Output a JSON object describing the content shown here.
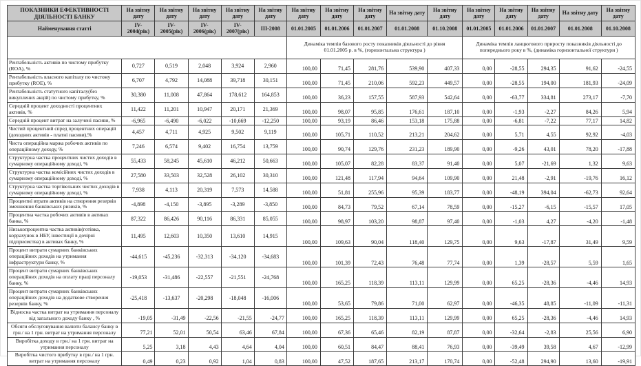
{
  "table": {
    "title": "ПОКАЗНИКИ ЕФЕКТИВНОСТІ ДІЯЛЬНОСТІ  БАНКУ",
    "subtitle": "Найменування статті",
    "report_date_header": "На звітну дату",
    "period_columns": [
      "IV-2004(рік)",
      "IV-2005(рік)",
      "IV-2006(рік)",
      "IV-2007(рік)",
      "III-2008"
    ],
    "base_dates": [
      "01.01.2005",
      "01.01.2006",
      "01.01.2007",
      "01.01.2008",
      "01.10.2008"
    ],
    "chain_dates": [
      "01.01.2005",
      "01.01.2006",
      "01.01.2007",
      "01.01.2008",
      "01.10.2008"
    ],
    "base_description": "Динаміка темпів базового росту показників діяльності до рівня 01.01.2005 р. в %, (горизонтальна структура )",
    "chain_description": "Динаміка темпів ланцюгового приросту показників діяльності до попереднього року в %, (динаміка горизонтальної структури )",
    "header_bg": "#c8c8c8",
    "border_color": "#3a3a3a",
    "rows": [
      {
        "name": "Рентабельність активів по чистому прибутку (ROA), %",
        "tail": false,
        "values": [
          "0,727",
          "0,519",
          "2,048",
          "3,924",
          "2,960"
        ],
        "base": [
          "100,00",
          "71,45",
          "281,76",
          "539,90",
          "407,33"
        ],
        "chain": [
          "0,00",
          "-28,55",
          "294,35",
          "91,62",
          "-24,55"
        ]
      },
      {
        "name": "Рентабельність власного капіталу по чистому прибутку (ROE), %",
        "tail": false,
        "values": [
          "6,707",
          "4,792",
          "14,088",
          "39,718",
          "30,151"
        ],
        "base": [
          "100,00",
          "71,45",
          "210,06",
          "592,23",
          "449,57"
        ],
        "chain": [
          "0,00",
          "-28,55",
          "194,00",
          "181,93",
          "-24,09"
        ]
      },
      {
        "name": "Рентабельність статутного капіталу(без викуплених акцій) по чистому прибутку, %",
        "tail": false,
        "values": [
          "30,380",
          "11,008",
          "47,864",
          "178,612",
          "164,853"
        ],
        "base": [
          "100,00",
          "36,23",
          "157,55",
          "587,93",
          "542,64"
        ],
        "chain": [
          "0,00",
          "-63,77",
          "334,81",
          "273,17",
          "-7,70"
        ]
      },
      {
        "name": "Середній процент доходності процентних активів, %",
        "tail": false,
        "values": [
          "11,422",
          "11,201",
          "10,947",
          "20,171",
          "21,369"
        ],
        "base": [
          "100,00",
          "98,07",
          "95,85",
          "176,61",
          "187,10"
        ],
        "chain": [
          "0,00",
          "-1,93",
          "-2,27",
          "84,26",
          "5,94"
        ]
      },
      {
        "name": "Середній процент витрат на залучені пасиви, %",
        "tail": false,
        "values": [
          "-6,965",
          "-6,490",
          "-6,022",
          "-10,669",
          "-12,250"
        ],
        "base": [
          "100,00",
          "93,19",
          "86,46",
          "153,18",
          "175,88"
        ],
        "chain": [
          "0,00",
          "-6,81",
          "-7,22",
          "77,17",
          "14,82"
        ]
      },
      {
        "name": "Чистий процентний спред процентних операцій (доходних активів - платні пасиви),%",
        "tail": false,
        "values": [
          "4,457",
          "4,711",
          "4,925",
          "9,502",
          "9,119"
        ],
        "base": [
          "100,00",
          "105,71",
          "110,52",
          "213,21",
          "204,62"
        ],
        "chain": [
          "0,00",
          "5,71",
          "4,55",
          "92,92",
          "-4,03"
        ]
      },
      {
        "name": "Чиста операційна маржа робочих активів по операційному доходу, %",
        "tail": false,
        "values": [
          "7,246",
          "6,574",
          "9,402",
          "16,754",
          "13,759"
        ],
        "base": [
          "100,00",
          "90,74",
          "129,76",
          "231,23",
          "189,90"
        ],
        "chain": [
          "0,00",
          "-9,26",
          "43,01",
          "78,20",
          "-17,88"
        ]
      },
      {
        "name": "Структурна частка процентних чистих доходів в сумарному операційному доході, %",
        "tail": false,
        "values": [
          "55,433",
          "58,245",
          "45,610",
          "46,212",
          "50,663"
        ],
        "base": [
          "100,00",
          "105,07",
          "82,28",
          "83,37",
          "91,40"
        ],
        "chain": [
          "0,00",
          "5,07",
          "-21,69",
          "1,32",
          "9,63"
        ]
      },
      {
        "name": "Структурна частка комісійних чистих доходів в сумарному операційному доході, %",
        "tail": false,
        "values": [
          "27,580",
          "33,503",
          "32,528",
          "26,102",
          "30,310"
        ],
        "base": [
          "100,00",
          "121,48",
          "117,94",
          "94,64",
          "109,90"
        ],
        "chain": [
          "0,00",
          "21,48",
          "-2,91",
          "-19,76",
          "16,12"
        ]
      },
      {
        "name": "Структурна частка торгівельних чистих доходів в сумарному операційному доході, %",
        "tail": false,
        "values": [
          "7,938",
          "4,113",
          "20,319",
          "7,573",
          "14,588"
        ],
        "base": [
          "100,00",
          "51,81",
          "255,96",
          "95,39",
          "183,77"
        ],
        "chain": [
          "0,00",
          "-48,19",
          "394,04",
          "-62,73",
          "92,64"
        ]
      },
      {
        "name": "Процентні втрати активів на створення резервів зменшення банківських ризиків, %",
        "tail": false,
        "values": [
          "-4,898",
          "-4,150",
          "-3,895",
          "-3,289",
          "-3,850"
        ],
        "base": [
          "100,00",
          "84,73",
          "79,52",
          "67,14",
          "78,59"
        ],
        "chain": [
          "0,00",
          "-15,27",
          "-6,15",
          "-15,57",
          "17,05"
        ]
      },
      {
        "name": "Процентна частка робочих активів в активах банка, %",
        "tail": false,
        "values": [
          "87,322",
          "86,426",
          "90,116",
          "86,331",
          "85,055"
        ],
        "base": [
          "100,00",
          "98,97",
          "103,20",
          "98,87",
          "97,40"
        ],
        "chain": [
          "0,00",
          "-1,03",
          "4,27",
          "-4,20",
          "-1,48"
        ]
      },
      {
        "name": "Низькопроцентна частка активів(готівка, коррахунок в НБУ, інвестиції в дочірні підприємства) в  активах банку, %",
        "tail": false,
        "values": [
          "11,495",
          "12,603",
          "10,350",
          "13,610",
          "14,915"
        ],
        "base": [
          "100,00",
          "109,63",
          "90,04",
          "118,40",
          "129,75"
        ],
        "chain": [
          "0,00",
          "9,63",
          "-17,87",
          "31,49",
          "9,59"
        ]
      },
      {
        "name": "Процент витрати сумарних банківських операційних доходів на утримання інфраструктури банку, %",
        "tail": false,
        "values": [
          "-44,615",
          "-45,236",
          "-32,313",
          "-34,120",
          "-34,683"
        ],
        "base": [
          "100,00",
          "101,39",
          "72,43",
          "76,48",
          "77,74"
        ],
        "chain": [
          "0,00",
          "1,39",
          "-28,57",
          "5,59",
          "1,65"
        ]
      },
      {
        "name": "Процент витрати сумарних банківських операційних доходів на оплату праці персоналу банку, %",
        "tail": false,
        "values": [
          "-19,053",
          "-31,486",
          "-22,557",
          "-21,551",
          "-24,768"
        ],
        "base": [
          "100,00",
          "165,25",
          "118,39",
          "113,11",
          "129,99"
        ],
        "chain": [
          "0,00",
          "65,25",
          "-28,36",
          "-4,46",
          "14,93"
        ]
      },
      {
        "name": "Процент витрати сумарних банківських операційних доходів на додаткове створення резервів банку, %",
        "tail": false,
        "values": [
          "-25,418",
          "-13,637",
          "-20,298",
          "-18,048",
          "-16,006"
        ],
        "base": [
          "100,00",
          "53,65",
          "79,86",
          "71,00",
          "62,97"
        ],
        "chain": [
          "0,00",
          "-46,35",
          "48,85",
          "-11,09",
          "-11,31"
        ]
      },
      {
        "name": "Відносна частка витрат на утримання персоналу від загального доходу банку , %",
        "tail": true,
        "values": [
          "-19,05",
          "-31,49",
          "-22,56",
          "-21,55",
          "-24,77"
        ],
        "base": [
          "100,00",
          "165,25",
          "118,39",
          "113,11",
          "129,99"
        ],
        "chain": [
          "0,00",
          "65,25",
          "-28,36",
          "-4,46",
          "14,93"
        ]
      },
      {
        "name": "Обсяги обслуговування валюти балансу банку в грн./ на 1 грн. витрат на утримання персоналу",
        "tail": true,
        "values": [
          "77,21",
          "52,01",
          "50,54",
          "63,46",
          "67,84"
        ],
        "base": [
          "100,00",
          "67,36",
          "65,46",
          "82,19",
          "87,87"
        ],
        "chain": [
          "0,00",
          "-32,64",
          "-2,83",
          "25,56",
          "6,90"
        ]
      },
      {
        "name": "Виробітка доходу в грн./ на 1 грн. витрат на утримання персоналу",
        "tail": true,
        "values": [
          "5,25",
          "3,18",
          "4,43",
          "4,64",
          "4,04"
        ],
        "base": [
          "100,00",
          "60,51",
          "84,47",
          "88,41",
          "76,93"
        ],
        "chain": [
          "0,00",
          "-39,49",
          "39,58",
          "4,67",
          "-12,99"
        ]
      },
      {
        "name": "Виробітка чистого прибутку в грн./ на 1 грн. витрат на утримання персоналу",
        "tail": true,
        "values": [
          "0,49",
          "0,23",
          "0,92",
          "1,04",
          "0,83"
        ],
        "base": [
          "100,00",
          "47,52",
          "187,65",
          "213,17",
          "170,74"
        ],
        "chain": [
          "0,00",
          "-52,48",
          "294,90",
          "13,60",
          "-19,91"
        ]
      }
    ]
  }
}
